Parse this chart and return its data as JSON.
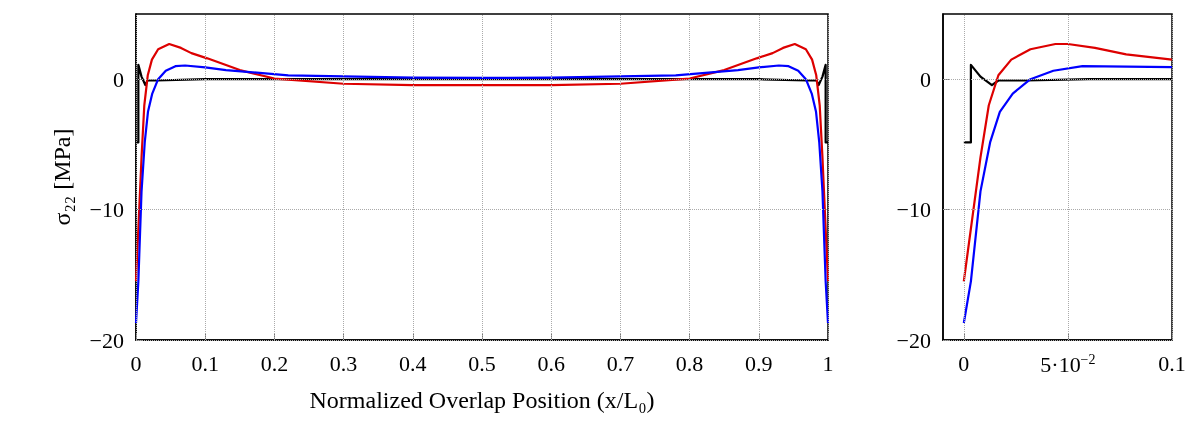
{
  "chart_data": [
    {
      "type": "line",
      "ylabel": "σ₂₂ [MPa]",
      "xlabel": "Normalized Overlap Position (x/L₀)",
      "xlim": [
        0,
        1
      ],
      "ylim": [
        -20,
        5
      ],
      "xticks": [
        0,
        0.1,
        0.2,
        0.3,
        0.4,
        0.5,
        0.6,
        0.7,
        0.8,
        0.9,
        1
      ],
      "yticks": [
        -20,
        -10,
        0
      ],
      "grid": true,
      "marker": "none",
      "line_style": "solid",
      "series": [
        {
          "color": "#000000",
          "x": [
            0,
            0.0034,
            0.0034,
            0.008,
            0.0135,
            0.0166,
            0.03,
            0.1,
            0.5,
            0.9,
            0.97,
            0.9834,
            0.9865,
            0.992,
            0.9966,
            0.9966,
            1
          ],
          "values": [
            -4.85,
            -4.85,
            1.1,
            0.2,
            -0.45,
            -0.1,
            -0.1,
            0,
            0,
            0,
            -0.1,
            -0.1,
            -0.45,
            0.2,
            1.1,
            -4.85,
            -4.85
          ]
        },
        {
          "color": "#dd0000",
          "x": [
            0,
            0.008,
            0.012,
            0.017,
            0.023,
            0.032,
            0.048,
            0.065,
            0.08,
            0.103,
            0.15,
            0.2,
            0.3,
            0.4,
            0.5,
            0.6,
            0.7,
            0.8,
            0.85,
            0.897,
            0.92,
            0.935,
            0.952,
            0.968,
            0.977,
            0.983,
            0.988,
            0.992,
            1
          ],
          "values": [
            -15.5,
            -6,
            -2,
            0.3,
            1.5,
            2.3,
            2.7,
            2.4,
            2,
            1.6,
            0.7,
            0.05,
            -0.35,
            -0.45,
            -0.45,
            -0.45,
            -0.35,
            0.05,
            0.7,
            1.6,
            2,
            2.4,
            2.7,
            2.3,
            1.5,
            0.3,
            -2,
            -6,
            -15.5
          ]
        },
        {
          "color": "#0000ff",
          "x": [
            0,
            0.0034,
            0.008,
            0.0127,
            0.0173,
            0.0235,
            0.032,
            0.043,
            0.057,
            0.071,
            0.1,
            0.13,
            0.22,
            0.4,
            0.5,
            0.6,
            0.78,
            0.87,
            0.9,
            0.929,
            0.943,
            0.957,
            0.968,
            0.9765,
            0.9827,
            0.9873,
            0.992,
            0.9966,
            1
          ],
          "values": [
            -18.7,
            -15.5,
            -8.6,
            -4.8,
            -2.5,
            -1.1,
            0,
            0.65,
            1,
            1.05,
            0.9,
            0.7,
            0.3,
            0.12,
            0.1,
            0.12,
            0.3,
            0.7,
            0.9,
            1.05,
            1,
            0.65,
            0,
            -1.1,
            -2.5,
            -4.8,
            -8.6,
            -15.5,
            -18.7
          ]
        }
      ]
    },
    {
      "type": "line",
      "xlim": [
        -0.01,
        0.1
      ],
      "ylim": [
        -20,
        5
      ],
      "xticks": [
        0,
        {
          "value": 0.05,
          "label": "5·10$^{−2}$"
        },
        0.1
      ],
      "yticks": [
        -20,
        -10,
        0
      ],
      "grid": true,
      "marker": "none",
      "line_style": "solid",
      "series": [
        {
          "color": "#000000",
          "x": [
            0,
            0.0034,
            0.0034,
            0.008,
            0.0135,
            0.0166,
            0.03,
            0.06,
            0.1
          ],
          "values": [
            -4.85,
            -4.85,
            1.1,
            0.2,
            -0.45,
            -0.1,
            -0.1,
            0,
            0
          ]
        },
        {
          "color": "#dd0000",
          "x": [
            0,
            0.008,
            0.012,
            0.0166,
            0.0228,
            0.032,
            0.044,
            0.05,
            0.063,
            0.078,
            0.1
          ],
          "values": [
            -15.5,
            -6,
            -2,
            0.3,
            1.5,
            2.3,
            2.7,
            2.7,
            2.4,
            1.9,
            1.5
          ]
        },
        {
          "color": "#0000ff",
          "x": [
            0,
            0.0034,
            0.008,
            0.0127,
            0.0173,
            0.0235,
            0.032,
            0.043,
            0.057,
            0.1
          ],
          "values": [
            -18.7,
            -15.5,
            -8.6,
            -4.8,
            -2.5,
            -1.1,
            0,
            0.65,
            1,
            0.93
          ]
        }
      ]
    }
  ]
}
